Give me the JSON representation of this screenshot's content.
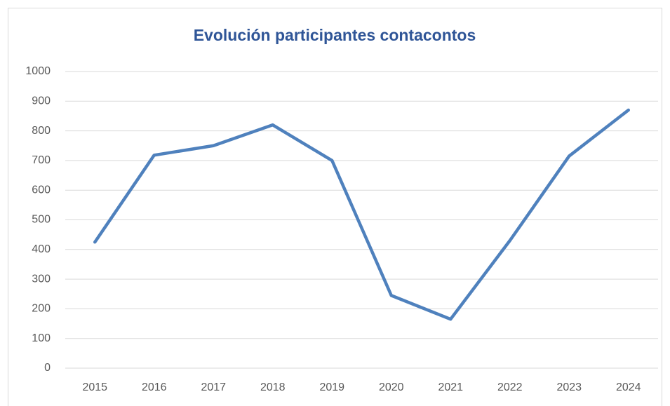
{
  "chart_data": {
    "type": "line",
    "title": "Evolución participantes contacontos",
    "categories": [
      "2015",
      "2016",
      "2017",
      "2018",
      "2019",
      "2020",
      "2021",
      "2022",
      "2023",
      "2024"
    ],
    "values": [
      425,
      718,
      750,
      820,
      700,
      245,
      165,
      430,
      715,
      870
    ],
    "color": "#4f81bd",
    "ylim": [
      0,
      1000
    ],
    "yticks": [
      0,
      100,
      200,
      300,
      400,
      500,
      600,
      700,
      800,
      900,
      1000
    ],
    "grid": true
  }
}
